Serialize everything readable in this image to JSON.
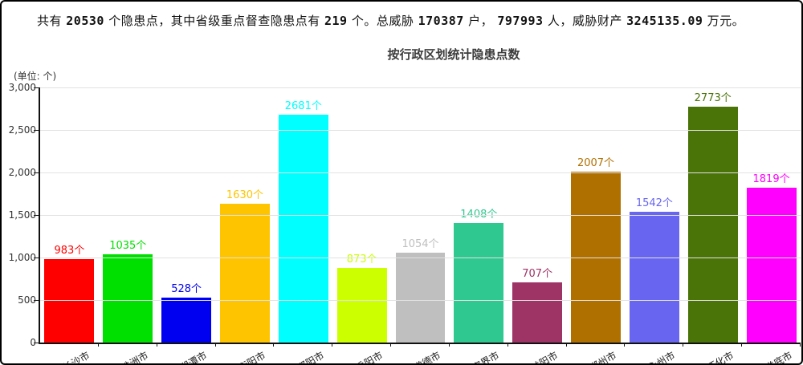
{
  "header": {
    "parts": [
      {
        "text": "共有 ",
        "bold": false
      },
      {
        "text": "20530",
        "bold": true
      },
      {
        "text": " 个隐患点，其中省级重点督查隐患点有 ",
        "bold": false
      },
      {
        "text": "219",
        "bold": true
      },
      {
        "text": " 个。总威胁 ",
        "bold": false
      },
      {
        "text": "170387",
        "bold": true
      },
      {
        "text": " 户， ",
        "bold": false
      },
      {
        "text": "797993",
        "bold": true
      },
      {
        "text": " 人，威胁财产 ",
        "bold": false
      },
      {
        "text": "3245135.09",
        "bold": true
      },
      {
        "text": " 万元。",
        "bold": false
      }
    ]
  },
  "chart_data": {
    "type": "bar",
    "title": "按行政区划统计隐患点数",
    "unit_label": "(单位: 个)",
    "value_suffix": "个",
    "categories": [
      "长沙市",
      "株洲市",
      "湘潭市",
      "衡阳市",
      "邵阳市",
      "岳阳市",
      "常德市",
      "张家界市",
      "益阳市",
      "郴州市",
      "永州市",
      "怀化市",
      "娄底市"
    ],
    "values": [
      983,
      1035,
      528,
      1630,
      2681,
      873,
      1054,
      1408,
      707,
      2007,
      1542,
      2773,
      1819
    ],
    "bar_colors": [
      "#ff0000",
      "#00e000",
      "#0000f0",
      "#ffc400",
      "#00ffff",
      "#ccff00",
      "#bfbfbf",
      "#2fc890",
      "#9e3365",
      "#b07000",
      "#6866f0",
      "#4a7308",
      "#ff00ff"
    ],
    "ylim": [
      0,
      3000
    ],
    "y_tick_values": [
      0,
      500,
      1000,
      1500,
      2000,
      2500,
      3000
    ],
    "y_tick_labels": [
      "0",
      "500",
      "1,000",
      "1,500",
      "2,000",
      "2,500",
      "3,000"
    ],
    "grid": true,
    "legend": "none",
    "xlabel_rotation_deg": -30,
    "xlabel": "",
    "ylabel": ""
  }
}
